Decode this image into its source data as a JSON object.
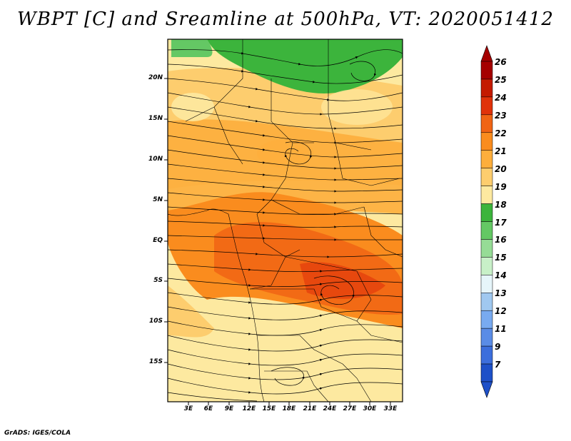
{
  "title": "WBPT [C] and Sreamline at 500hPa, VT: 2020051412",
  "footer": "GrADS: IGES/COLA",
  "map": {
    "lat_labels": [
      "20N",
      "15N",
      "10N",
      "5N",
      "EQ",
      "5S",
      "10S",
      "15S"
    ],
    "lon_labels": [
      "3E",
      "6E",
      "9E",
      "12E",
      "15E",
      "18E",
      "21E",
      "24E",
      "27E",
      "30E",
      "33E"
    ]
  },
  "colorbar": {
    "labels": [
      "26",
      "25",
      "24",
      "23",
      "22",
      "21",
      "20",
      "19",
      "18",
      "17",
      "16",
      "15",
      "14",
      "13",
      "12",
      "11",
      "9",
      "7"
    ],
    "colors": [
      "#a50000",
      "#c41a00",
      "#e0320a",
      "#f06414",
      "#fa8c1e",
      "#fdae3c",
      "#fdcd6e",
      "#fde9a0",
      "#3cb43c",
      "#64c864",
      "#96dc96",
      "#c8f0c8",
      "#e6f5fa",
      "#a0c8f0",
      "#78aaf0",
      "#5a8ce6",
      "#3c6edc",
      "#1e50c8"
    ]
  }
}
